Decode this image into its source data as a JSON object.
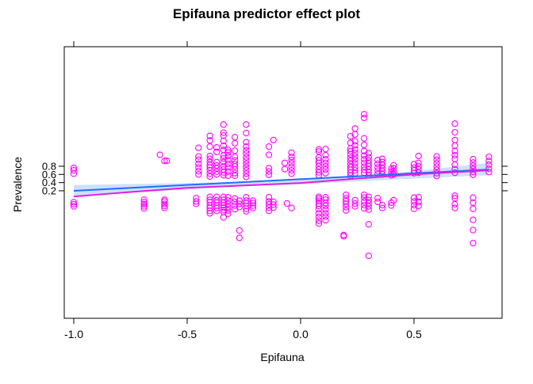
{
  "chart_data": {
    "type": "scatter",
    "title": "Epifauna predictor effect plot",
    "xlabel": "Epifauna",
    "ylabel": "Prevalence",
    "xlim": [
      -1.1,
      0.89
    ],
    "xticks": [
      -1.0,
      -0.5,
      0.0,
      0.5
    ],
    "xtick_labels": [
      "-1.0",
      "-0.5",
      "0.0",
      "0.5"
    ],
    "yticks": [
      0.2,
      0.4,
      0.6,
      0.8
    ],
    "ytick_labels": [
      "0.2",
      "0.4",
      "0.6",
      "0.8"
    ],
    "point_color": "#FF00FF",
    "fit_color": "#1E6FFF",
    "smooth_color": "#E020E0",
    "band_color": "#CFE0FA",
    "fit_line": {
      "x": [
        -1.0,
        0.83
      ],
      "y": [
        0.2,
        0.72
      ]
    },
    "confidence_band": {
      "x": [
        -1.0,
        -0.5,
        -0.25,
        0.0,
        0.25,
        0.5,
        0.83
      ],
      "lower": [
        0.08,
        0.23,
        0.31,
        0.36,
        0.43,
        0.5,
        0.58
      ],
      "upper": [
        0.34,
        0.39,
        0.42,
        0.47,
        0.57,
        0.68,
        0.88
      ]
    },
    "smooth_line": {
      "x": [
        -1.0,
        -0.75,
        -0.5,
        -0.25,
        0.0,
        0.25,
        0.5,
        0.83
      ],
      "y": [
        0.06,
        0.17,
        0.27,
        0.33,
        0.39,
        0.5,
        0.6,
        0.7
      ]
    },
    "points": [
      {
        "x": -1.0,
        "y": [
          -0.18,
          -0.13,
          -0.08,
          0.62,
          0.7,
          0.76
        ]
      },
      {
        "x": -0.69,
        "y": [
          -0.23,
          -0.18,
          -0.13,
          -0.08,
          -0.02
        ]
      },
      {
        "x": -0.6,
        "y": [
          -0.22,
          -0.17,
          -0.12,
          -0.06,
          -0.02,
          0.93
        ]
      },
      {
        "x": -0.62,
        "y": [
          1.08
        ]
      },
      {
        "x": -0.59,
        "y": [
          0.93
        ]
      },
      {
        "x": -0.46,
        "y": [
          -0.12,
          -0.06,
          0.02
        ]
      },
      {
        "x": -0.45,
        "y": [
          0.6,
          0.68,
          0.77,
          0.86,
          0.96,
          1.04,
          1.25
        ]
      },
      {
        "x": -0.4,
        "y": [
          -0.35,
          -0.29,
          -0.22,
          -0.16,
          -0.08,
          -0.02,
          0.05,
          0.55,
          0.62,
          0.7,
          0.77,
          0.83,
          0.9,
          0.98,
          1.05,
          1.28,
          1.43,
          1.54
        ]
      },
      {
        "x": -0.37,
        "y": [
          -0.29,
          -0.22,
          -0.16,
          -0.09,
          -0.03,
          0.05,
          0.6,
          0.67,
          0.75,
          0.82,
          0.9,
          1.15,
          1.26
        ]
      },
      {
        "x": -0.34,
        "y": [
          -0.45,
          -0.32,
          -0.27,
          -0.21,
          -0.15,
          -0.09,
          -0.02,
          0.05,
          0.58,
          0.65,
          0.72,
          0.8,
          0.9,
          0.99,
          1.06,
          1.2,
          1.3,
          1.42,
          1.55,
          1.62,
          1.82
        ]
      },
      {
        "x": -0.32,
        "y": [
          -0.36,
          -0.28,
          -0.2,
          -0.12,
          -0.04,
          0.04,
          0.57,
          0.67,
          0.77,
          0.86,
          0.95,
          1.05,
          1.14,
          1.2
        ]
      },
      {
        "x": -0.29,
        "y": [
          -0.25,
          -0.16,
          -0.07,
          0.01,
          0.57,
          0.63,
          0.72,
          0.8,
          0.86,
          0.94,
          1.03,
          1.18,
          1.36,
          1.51
        ]
      },
      {
        "x": -0.27,
        "y": [
          -0.77,
          -0.95,
          -0.2,
          -0.12,
          -0.04
        ]
      },
      {
        "x": -0.24,
        "y": [
          -0.3,
          -0.24,
          -0.17,
          -0.1,
          -0.04,
          0.04,
          0.54,
          0.62,
          0.7,
          0.78,
          0.86,
          0.94,
          1.02,
          1.11,
          1.19,
          1.28,
          1.39,
          1.61,
          1.82
        ]
      },
      {
        "x": -0.21,
        "y": [
          -0.22,
          -0.16,
          -0.1,
          -0.04
        ]
      },
      {
        "x": -0.14,
        "y": [
          -0.29,
          -0.21,
          -0.13,
          -0.06,
          0.04,
          0.59,
          0.67,
          0.75,
          1.08,
          1.28
        ]
      },
      {
        "x": -0.12,
        "y": [
          -0.21,
          -0.14,
          -0.07,
          1.44
        ]
      },
      {
        "x": -0.07,
        "y": [
          0.73,
          0.88
        ]
      },
      {
        "x": -0.06,
        "y": [
          -0.11
        ]
      },
      {
        "x": -0.04,
        "y": [
          -0.22,
          0.62,
          0.7,
          0.78,
          0.87,
          0.95,
          1.03,
          1.13
        ]
      },
      {
        "x": 0.08,
        "y": [
          -0.6,
          -0.53,
          -0.44,
          -0.35,
          -0.25,
          -0.17,
          -0.11,
          -0.04,
          0.01,
          0.05,
          0.58,
          0.65,
          0.72,
          0.8,
          0.88,
          0.94,
          1.01,
          1.16,
          1.21
        ]
      },
      {
        "x": 0.11,
        "y": [
          -0.52,
          -0.43,
          -0.35,
          -0.26,
          -0.17,
          -0.1,
          -0.02,
          0.04,
          0.63,
          0.72,
          0.8,
          0.88,
          0.97,
          1.07,
          1.22
        ]
      },
      {
        "x": 0.19,
        "y": [
          -0.91,
          -0.88
        ]
      },
      {
        "x": 0.2,
        "y": [
          -0.28,
          -0.2,
          -0.12,
          -0.05,
          0.02,
          0.1
        ]
      },
      {
        "x": 0.22,
        "y": [
          0.57,
          0.64,
          0.71,
          0.78,
          0.85,
          0.93,
          1.0,
          1.09,
          1.17,
          1.23,
          1.37,
          1.53
        ]
      },
      {
        "x": 0.24,
        "y": [
          -0.18,
          -0.11,
          -0.03,
          0.63,
          0.7,
          0.78,
          0.87,
          0.96,
          1.04,
          1.12,
          1.21,
          1.31,
          1.41,
          1.58,
          1.72
        ]
      },
      {
        "x": 0.28,
        "y": [
          -0.23,
          -0.15,
          -0.06,
          0.03,
          0.1,
          0.64,
          0.71,
          0.79,
          0.88,
          0.97,
          1.06,
          1.17,
          1.32,
          1.48,
          1.98,
          2.07
        ]
      },
      {
        "x": 0.3,
        "y": [
          -1.39,
          -0.62,
          -0.26,
          -0.18,
          -0.1,
          -0.03,
          0.05,
          0.58,
          0.65,
          0.72,
          0.8,
          0.87,
          0.94,
          1.02,
          1.12
        ]
      },
      {
        "x": 0.34,
        "y": [
          -0.07,
          0.02,
          0.61,
          0.69,
          0.77,
          0.86,
          0.95
        ]
      },
      {
        "x": 0.36,
        "y": [
          -0.22,
          -0.15,
          0.6,
          0.68,
          0.75,
          0.83,
          0.9,
          0.98
        ]
      },
      {
        "x": 0.4,
        "y": [
          -0.16,
          -0.09,
          0.58,
          0.66,
          0.74
        ]
      },
      {
        "x": 0.41,
        "y": [
          -0.03,
          0.6,
          0.67,
          0.75,
          0.82
        ]
      },
      {
        "x": 0.5,
        "y": [
          -0.24,
          -0.15,
          -0.06,
          0.03,
          0.63,
          0.7,
          0.77,
          0.85
        ]
      },
      {
        "x": 0.52,
        "y": [
          -0.17,
          -0.07,
          0.04,
          0.64,
          0.72,
          0.8,
          0.88,
          1.05
        ]
      },
      {
        "x": 0.6,
        "y": [
          0.56,
          0.63,
          0.71,
          0.79,
          0.87,
          0.96,
          1.04
        ]
      },
      {
        "x": 0.68,
        "y": [
          -0.22,
          -0.13,
          0.02,
          0.08,
          0.64,
          0.73,
          0.84,
          0.98,
          1.07,
          1.17,
          1.3,
          1.44,
          1.63,
          1.84
        ]
      },
      {
        "x": 0.76,
        "y": [
          -0.76,
          -1.08,
          -0.51,
          -0.24,
          -0.09,
          0.03,
          0.59,
          0.66,
          0.73,
          0.81,
          0.89,
          0.97
        ]
      },
      {
        "x": 0.83,
        "y": [
          0.66,
          0.74,
          0.84,
          0.93,
          1.03
        ]
      }
    ]
  }
}
